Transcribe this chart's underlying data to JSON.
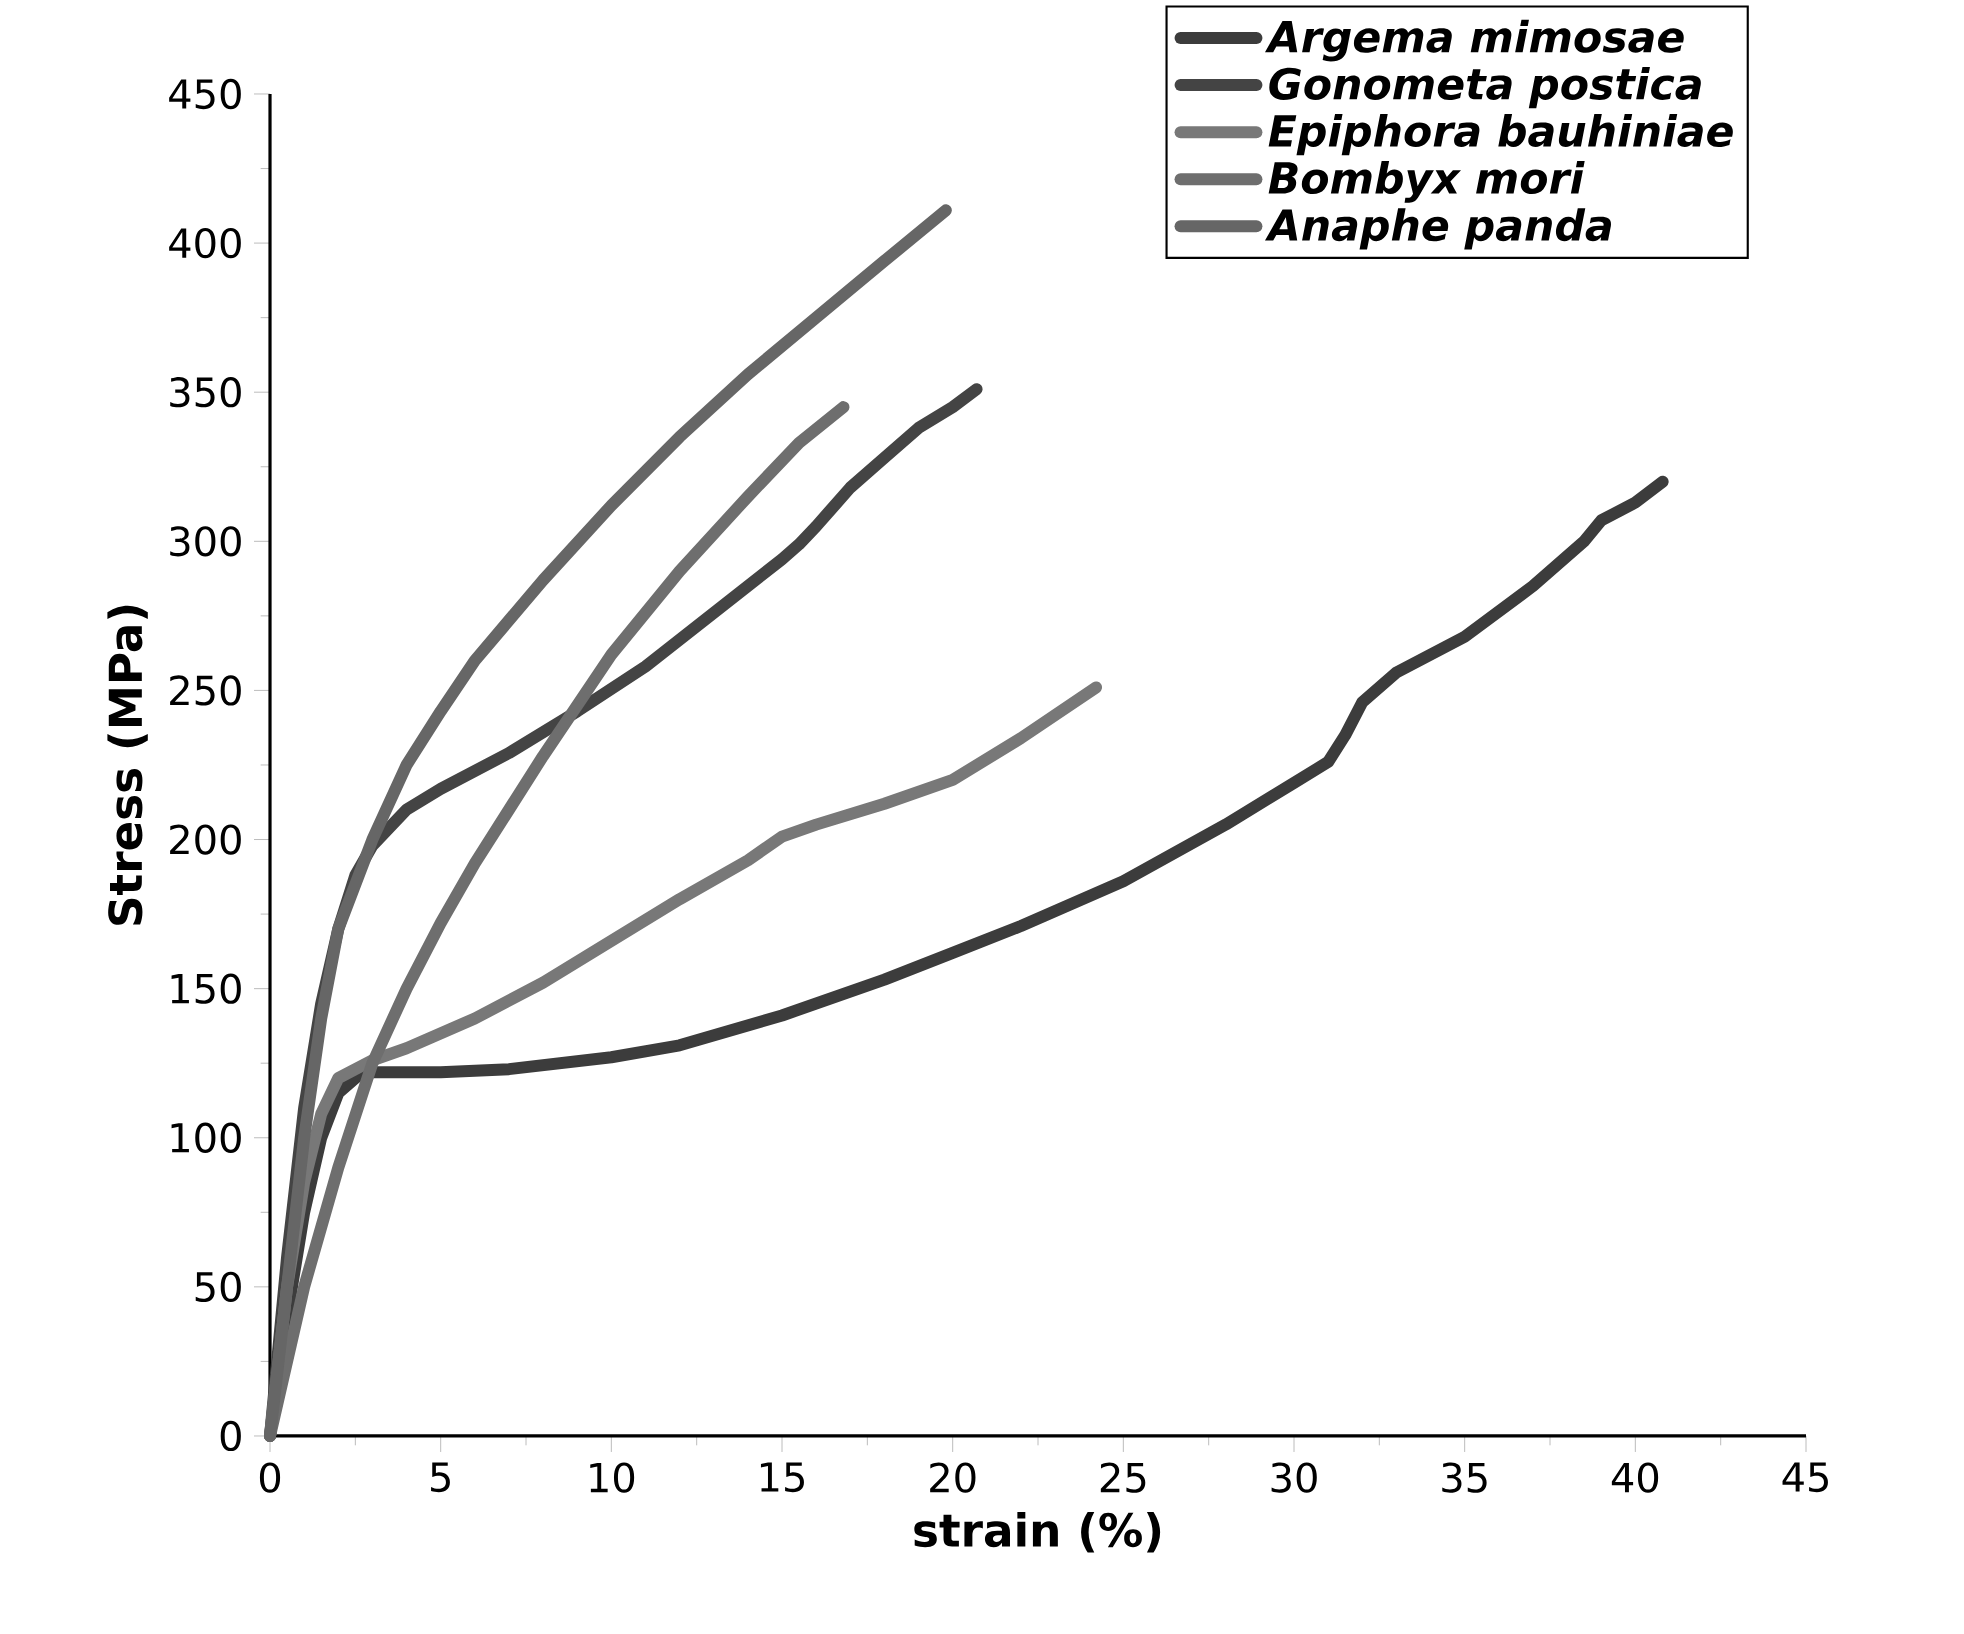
{
  "chart_data": {
    "type": "line",
    "xlabel": "strain (%)",
    "ylabel": "Stress (MPa)",
    "xlim": [
      0,
      45
    ],
    "ylim": [
      0,
      450
    ],
    "xticks": [
      0,
      5,
      10,
      15,
      20,
      25,
      30,
      35,
      40,
      45
    ],
    "yticks": [
      0,
      50,
      100,
      150,
      200,
      250,
      300,
      350,
      400,
      450
    ],
    "grid": false,
    "legend": "top right",
    "marker": "none",
    "line_style": "solid",
    "series": [
      {
        "name": "Argema mimosae",
        "color": "#3c3c3c",
        "x": [
          0,
          0.5,
          1,
          1.5,
          2,
          2.7,
          5,
          7,
          10,
          12,
          15,
          18,
          20,
          22,
          25,
          28,
          30,
          31,
          31.5,
          32,
          33,
          35,
          37,
          38.5,
          39,
          40,
          40.8
        ],
        "values": [
          0,
          40,
          75,
          100,
          115,
          122,
          122,
          123,
          127,
          131,
          141,
          153,
          162,
          171,
          186,
          205,
          219,
          226,
          235,
          246,
          256,
          268,
          285,
          300,
          307,
          313,
          320
        ]
      },
      {
        "name": "Gonometa postica",
        "color": "#444444",
        "x": [
          0,
          0.5,
          1,
          1.5,
          2,
          2.5,
          3,
          4,
          5,
          7,
          9,
          11,
          13,
          15,
          15.5,
          16,
          17,
          18,
          19,
          20,
          20.7
        ],
        "values": [
          0,
          60,
          110,
          145,
          170,
          188,
          198,
          210,
          217,
          229,
          243,
          258,
          276,
          294,
          299,
          305,
          318,
          328,
          338,
          345,
          351
        ]
      },
      {
        "name": "Epiphora bauhiniae",
        "color": "#787878",
        "x": [
          0,
          0.5,
          1,
          1.5,
          2,
          3,
          4,
          6,
          8,
          10,
          12,
          14,
          15,
          16,
          18,
          20,
          22,
          24.2
        ],
        "values": [
          0,
          50,
          85,
          108,
          120,
          126,
          130,
          140,
          152,
          166,
          180,
          193,
          201,
          205,
          212,
          220,
          234,
          251
        ]
      },
      {
        "name": "Bombyx mori",
        "color": "#6e6e6e",
        "x": [
          0,
          1,
          2,
          3,
          4,
          5,
          6,
          8,
          10,
          12,
          14,
          15.5,
          16.8
        ],
        "values": [
          0,
          50,
          90,
          125,
          150,
          172,
          192,
          228,
          262,
          290,
          315,
          333,
          345
        ]
      },
      {
        "name": "Anaphe panda",
        "color": "#666666",
        "x": [
          0,
          0.5,
          1,
          1.5,
          2,
          3,
          4,
          5,
          6,
          8,
          10,
          12,
          14,
          16,
          18,
          19.8
        ],
        "values": [
          0,
          50,
          100,
          140,
          170,
          200,
          225,
          243,
          260,
          287,
          312,
          335,
          356,
          375,
          394,
          411
        ]
      }
    ]
  }
}
